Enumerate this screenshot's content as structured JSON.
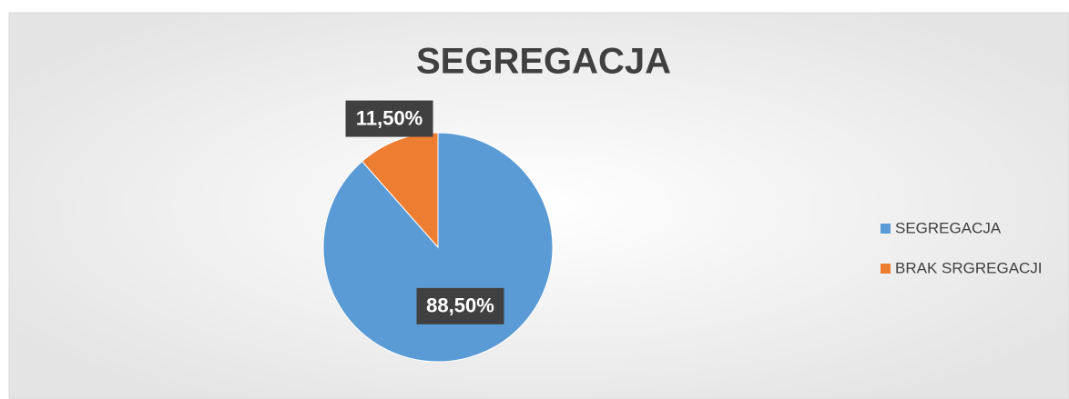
{
  "chart_data": {
    "type": "pie",
    "title": "SEGREGACJA",
    "categories": [
      "SEGREGACJA",
      "BRAK SRGREGACJI"
    ],
    "values": [
      88.5,
      11.5
    ],
    "value_labels": [
      "88,50%",
      "11,50%"
    ],
    "colors": [
      "#5b9bd5",
      "#ed7d31"
    ],
    "legend": "right"
  }
}
